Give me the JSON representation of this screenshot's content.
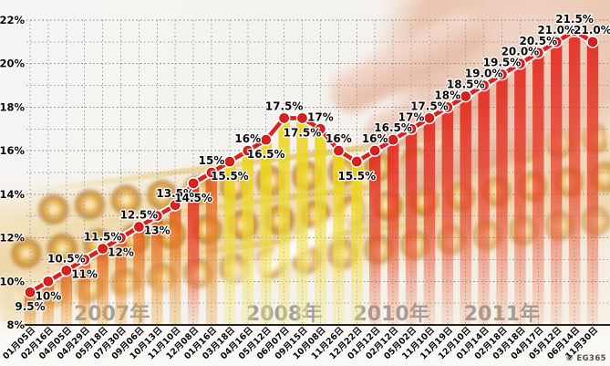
{
  "watermark": "© EG365",
  "colors": {
    "line": "#df1f1e",
    "line_casing": "#ffffff",
    "marker_fill": "#df1f1e",
    "marker_ring": "#ffffff",
    "axis": "#26211c",
    "grid_major": "#8d8b86",
    "grid_minor": "#a3a19b",
    "label_text": "#0b0907",
    "year_text": "#8f8d88",
    "bar_orange_top": "#e4531b",
    "bar_yellow_top": "#ecd40f",
    "bar_red_top": "#e2241a"
  },
  "chart_data": {
    "type": "line",
    "title": "",
    "xlabel": "",
    "ylabel": "",
    "unit": "%",
    "ylim": [
      8,
      22
    ],
    "grid": "dotted; horizontal line every 1%, vertical line at every data point",
    "legend": "none",
    "yticks": [
      {
        "value": 22,
        "label": "22%"
      },
      {
        "value": 20,
        "label": "20%"
      },
      {
        "value": 18,
        "label": "18%"
      },
      {
        "value": 16,
        "label": "16%"
      },
      {
        "value": 14,
        "label": "14%"
      },
      {
        "value": 12,
        "label": "12%"
      },
      {
        "value": 10,
        "label": "10%"
      },
      {
        "value": 8,
        "label": "8%"
      }
    ],
    "year_groups": [
      {
        "label": "2007年",
        "anchor_index": 4.5
      },
      {
        "label": "2008年",
        "anchor_index": 14
      },
      {
        "label": "2010年",
        "anchor_index": 19.9
      },
      {
        "label": "2011年",
        "anchor_index": 26
      }
    ],
    "points": [
      {
        "date": "01月05日",
        "value": 9.5,
        "label": "9.5%",
        "label_side": "below",
        "bar": "orange"
      },
      {
        "date": "02月16日",
        "value": 10,
        "label": "10%",
        "label_side": "below",
        "bar": "orange"
      },
      {
        "date": "04月05日",
        "value": 10.5,
        "label": "10.5%",
        "label_side": "above",
        "bar": "orange"
      },
      {
        "date": "04月29日",
        "value": 11,
        "label": "11%",
        "label_side": "below",
        "bar": "orange"
      },
      {
        "date": "05月18日",
        "value": 11.5,
        "label": "11.5%",
        "label_side": "above",
        "bar": "orange"
      },
      {
        "date": "07月30日",
        "value": 12,
        "label": "12%",
        "label_side": "below",
        "bar": "orange"
      },
      {
        "date": "09月06日",
        "value": 12.5,
        "label": "12.5%",
        "label_side": "above",
        "bar": "orange"
      },
      {
        "date": "10月13日",
        "value": 13,
        "label": "13%",
        "label_side": "below",
        "bar": "orange"
      },
      {
        "date": "11月10日",
        "value": 13.5,
        "label": "13.5%",
        "label_side": "above",
        "bar": "orange"
      },
      {
        "date": "12月08日",
        "value": 14.5,
        "label": "14.5%",
        "label_side": "below",
        "bar": "red"
      },
      {
        "date": "01月16日",
        "value": 15,
        "label": "15%",
        "label_side": "above",
        "bar": "orange"
      },
      {
        "date": "03月18日",
        "value": 15.5,
        "label": "15.5%",
        "label_side": "below",
        "bar": "yellow"
      },
      {
        "date": "04月16日",
        "value": 16,
        "label": "16%",
        "label_side": "above",
        "bar": "yellow"
      },
      {
        "date": "05月12日",
        "value": 16.5,
        "label": "16.5%",
        "label_side": "below",
        "bar": "yellow"
      },
      {
        "date": "06月07日",
        "value": 17.5,
        "label": "17.5%",
        "label_side": "above",
        "bar": "yellow"
      },
      {
        "date": "09月15日",
        "value": 17.5,
        "label": "17.5%",
        "label_side": "below",
        "bar": "yellow"
      },
      {
        "date": "10月08日",
        "value": 17,
        "label": "17%",
        "label_side": "above",
        "bar": "yellow"
      },
      {
        "date": "11月26日",
        "value": 16,
        "label": "16%",
        "label_side": "above",
        "bar": "yellow"
      },
      {
        "date": "12月22日",
        "value": 15.5,
        "label": "15.5%",
        "label_side": "below",
        "bar": "yellow"
      },
      {
        "date": "01月12日",
        "value": 16,
        "label": "16%",
        "label_side": "above",
        "bar": "red"
      },
      {
        "date": "02月12日",
        "value": 16.5,
        "label": "16.5%",
        "label_side": "above",
        "bar": "red"
      },
      {
        "date": "05月02日",
        "value": 17,
        "label": "17%",
        "label_side": "above",
        "bar": "red"
      },
      {
        "date": "11月10日",
        "value": 17.5,
        "label": "17.5%",
        "label_side": "above",
        "bar": "red"
      },
      {
        "date": "11月19日",
        "value": 18,
        "label": "18%",
        "label_side": "above",
        "bar": "red"
      },
      {
        "date": "12月10日",
        "value": 18.5,
        "label": "18.5%",
        "label_side": "above",
        "bar": "red"
      },
      {
        "date": "01月14日",
        "value": 19,
        "label": "19.0%",
        "label_side": "above",
        "bar": "red"
      },
      {
        "date": "02月18日",
        "value": 19.5,
        "label": "19.5%",
        "label_side": "above",
        "bar": "red"
      },
      {
        "date": "03月18日",
        "value": 20,
        "label": "20.0%",
        "label_side": "above",
        "bar": "red"
      },
      {
        "date": "04月17日",
        "value": 20.5,
        "label": "20.5%",
        "label_side": "above",
        "bar": "red"
      },
      {
        "date": "05月12日",
        "value": 21,
        "label": "21.0%",
        "label_side": "above",
        "bar": "red"
      },
      {
        "date": "06月14日",
        "value": 21.5,
        "label": "21.5%",
        "label_side": "above",
        "bar": "red"
      },
      {
        "date": "11月30日",
        "value": 21,
        "label": "21.0%",
        "label_side": "above",
        "bar": "red"
      }
    ]
  }
}
